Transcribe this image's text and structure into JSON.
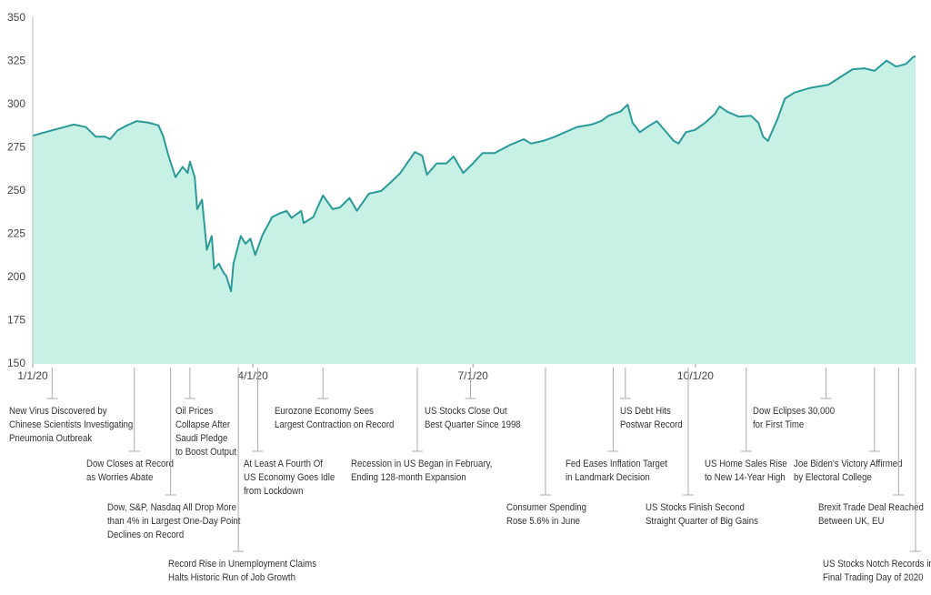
{
  "chart_data": {
    "type": "area",
    "color": "#2a9a98",
    "fill": "#c8f1e6",
    "xlim": [
      "1/1/20",
      "12/31/20"
    ],
    "xticks": [
      "1/1/20",
      "4/1/20",
      "7/1/20",
      "10/1/20"
    ],
    "ylim": [
      150,
      350
    ],
    "yticks": [
      150,
      175,
      200,
      225,
      250,
      275,
      300,
      325,
      350
    ],
    "grid": false,
    "x": [
      "1/1/20",
      "1/6/20",
      "1/14/20",
      "1/18/20",
      "1/23/20",
      "1/27/20",
      "1/31/20",
      "2/2/20",
      "2/5/20",
      "2/9/20",
      "2/13/20",
      "2/18/20",
      "2/22/20",
      "2/24/20",
      "2/26/20",
      "2/29/20",
      "3/3/20",
      "3/5/20",
      "3/6/20",
      "3/8/20",
      "3/9/20",
      "3/11/20",
      "3/13/20",
      "3/15/20",
      "3/16/20",
      "3/18/20",
      "3/20/20",
      "3/21/20",
      "3/23/20",
      "3/24/20",
      "3/27/20",
      "3/29/20",
      "3/31/20",
      "4/2/20",
      "4/5/20",
      "4/9/20",
      "4/12/20",
      "4/15/20",
      "4/17/20",
      "4/21/20",
      "4/22/20",
      "4/26/20",
      "4/30/20",
      "5/4/20",
      "5/7/20",
      "5/11/20",
      "5/14/20",
      "5/19/20",
      "5/24/20",
      "5/28/20",
      "6/1/20",
      "6/5/20",
      "6/7/20",
      "6/10/20",
      "6/12/20",
      "6/16/20",
      "6/20/20",
      "6/23/20",
      "6/27/20",
      "7/1/20",
      "7/5/20",
      "7/10/20",
      "7/16/20",
      "7/22/20",
      "7/25/20",
      "7/30/20",
      "8/4/20",
      "8/8/20",
      "8/13/20",
      "8/19/20",
      "8/23/20",
      "8/26/20",
      "8/31/20",
      "9/3/20",
      "9/5/20",
      "9/8/20",
      "9/11/20",
      "9/15/20",
      "9/19/20",
      "9/22/20",
      "9/24/20",
      "9/27/20",
      "10/1/20",
      "10/5/20",
      "10/9/20",
      "10/11/20",
      "10/14/20",
      "10/19/20",
      "10/24/20",
      "10/27/20",
      "10/29/20",
      "10/31/20",
      "11/4/20",
      "11/7/20",
      "11/11/20",
      "11/17/20",
      "11/25/20",
      "11/30/20",
      "12/5/20",
      "12/10/20",
      "12/14/20",
      "12/19/20",
      "12/23/20",
      "12/27/20",
      "12/30/20",
      "12/31/20"
    ],
    "values": [
      282,
      284,
      287,
      288.5,
      287,
      281.5,
      281.5,
      280,
      285,
      288,
      290.5,
      289.5,
      288,
      281.5,
      271,
      258,
      264,
      260.5,
      267,
      258,
      239.5,
      245,
      216,
      224,
      205,
      208,
      202.5,
      201,
      192,
      208,
      224,
      219.5,
      222.5,
      213,
      224.5,
      235,
      237,
      238.5,
      234.5,
      238.5,
      231.5,
      235,
      247.5,
      239.5,
      240.5,
      246,
      238.5,
      248.5,
      250,
      255,
      260.5,
      268.5,
      272.5,
      270.5,
      259.5,
      266,
      266,
      270,
      260.5,
      266,
      272,
      272,
      276.5,
      280,
      277.5,
      279,
      281.5,
      284,
      287,
      288.5,
      290.5,
      293.5,
      296,
      300,
      289.5,
      284,
      287,
      290.5,
      284,
      279,
      277.5,
      284,
      285.5,
      289.5,
      294.5,
      299,
      296,
      293,
      293.5,
      289.5,
      281.5,
      279,
      292,
      303.5,
      307,
      309.5,
      311.5,
      316,
      320.5,
      321,
      319.5,
      325.5,
      322,
      323.5,
      327.5,
      328
    ],
    "annotations": [
      {
        "date": "1/9/20",
        "lines": [
          "New Virus Discovered by",
          "Chinese Scientists Investigating",
          "Pneumonia Outbreak"
        ]
      },
      {
        "date": "2/12/20",
        "lines": [
          "Dow Closes at Record",
          "as Worries Abate"
        ]
      },
      {
        "date": "2/27/20",
        "lines": [
          "Dow, S&P, Nasdaq All Drop More",
          "than 4% in Largest One-Day Point",
          "Declines on Record"
        ]
      },
      {
        "date": "3/6/20",
        "lines": [
          "Oil Prices",
          "Collapse After",
          "Saudi Pledge",
          "to Boost Output"
        ]
      },
      {
        "date": "3/26/20",
        "lines": [
          "Record Rise in Unemployment Claims",
          "Halts Historic Run of Job Growth"
        ]
      },
      {
        "date": "4/3/20",
        "lines": [
          "At Least A Fourth Of",
          "US Economy Goes Idle",
          "from Lockdown"
        ]
      },
      {
        "date": "4/30/20",
        "lines": [
          "Eurozone Economy Sees",
          "Largest Contraction on Record"
        ]
      },
      {
        "date": "6/8/20",
        "lines": [
          "Recession in US Began in February,",
          "Ending 128-month Expansion"
        ]
      },
      {
        "date": "6/30/20",
        "lines": [
          "US Stocks Close Out",
          "Best Quarter Since 1998"
        ]
      },
      {
        "date": "7/31/20",
        "lines": [
          "Consumer Spending",
          "Rose 5.6% in June"
        ]
      },
      {
        "date": "8/28/20",
        "lines": [
          "Fed Eases Inflation Target",
          "in Landmark Decision"
        ]
      },
      {
        "date": "9/2/20",
        "lines": [
          "US Debt Hits",
          "Postwar Record"
        ]
      },
      {
        "date": "9/28/20",
        "lines": [
          "US Stocks Finish Second",
          "Straight Quarter of Big Gains"
        ]
      },
      {
        "date": "10/22/20",
        "lines": [
          "US Home Sales Rise",
          "to New 14-Year High"
        ]
      },
      {
        "date": "11/24/20",
        "lines": [
          "Dow Eclipses 30,000",
          "for First Time"
        ]
      },
      {
        "date": "12/14/20",
        "lines": [
          "Joe Biden's Victory Affirmed",
          "by Electoral College"
        ]
      },
      {
        "date": "12/24/20",
        "lines": [
          "Brexit Trade Deal Reached",
          "Between UK, EU"
        ]
      },
      {
        "date": "12/31/20",
        "lines": [
          "US Stocks Notch Records in",
          "Final Trading Day of 2020"
        ]
      }
    ]
  }
}
